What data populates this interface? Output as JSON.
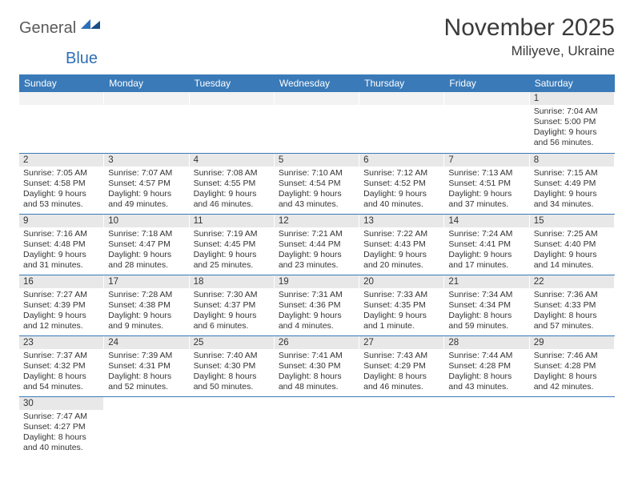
{
  "logo": {
    "general": "General",
    "blue": "Blue"
  },
  "title": "November 2025",
  "location": "Miliyeve, Ukraine",
  "colors": {
    "header_bg": "#3a7ab8",
    "header_text": "#ffffff",
    "daynum_bg": "#e8e8e8",
    "row_border": "#3a7ab8",
    "text": "#333333",
    "logo_gray": "#5a5a5a",
    "logo_blue": "#2d6fb6"
  },
  "day_headers": [
    "Sunday",
    "Monday",
    "Tuesday",
    "Wednesday",
    "Thursday",
    "Friday",
    "Saturday"
  ],
  "weeks": [
    [
      null,
      null,
      null,
      null,
      null,
      null,
      {
        "n": "1",
        "sr": "7:04 AM",
        "ss": "5:00 PM",
        "dl": "9 hours and 56 minutes."
      }
    ],
    [
      {
        "n": "2",
        "sr": "7:05 AM",
        "ss": "4:58 PM",
        "dl": "9 hours and 53 minutes."
      },
      {
        "n": "3",
        "sr": "7:07 AM",
        "ss": "4:57 PM",
        "dl": "9 hours and 49 minutes."
      },
      {
        "n": "4",
        "sr": "7:08 AM",
        "ss": "4:55 PM",
        "dl": "9 hours and 46 minutes."
      },
      {
        "n": "5",
        "sr": "7:10 AM",
        "ss": "4:54 PM",
        "dl": "9 hours and 43 minutes."
      },
      {
        "n": "6",
        "sr": "7:12 AM",
        "ss": "4:52 PM",
        "dl": "9 hours and 40 minutes."
      },
      {
        "n": "7",
        "sr": "7:13 AM",
        "ss": "4:51 PM",
        "dl": "9 hours and 37 minutes."
      },
      {
        "n": "8",
        "sr": "7:15 AM",
        "ss": "4:49 PM",
        "dl": "9 hours and 34 minutes."
      }
    ],
    [
      {
        "n": "9",
        "sr": "7:16 AM",
        "ss": "4:48 PM",
        "dl": "9 hours and 31 minutes."
      },
      {
        "n": "10",
        "sr": "7:18 AM",
        "ss": "4:47 PM",
        "dl": "9 hours and 28 minutes."
      },
      {
        "n": "11",
        "sr": "7:19 AM",
        "ss": "4:45 PM",
        "dl": "9 hours and 25 minutes."
      },
      {
        "n": "12",
        "sr": "7:21 AM",
        "ss": "4:44 PM",
        "dl": "9 hours and 23 minutes."
      },
      {
        "n": "13",
        "sr": "7:22 AM",
        "ss": "4:43 PM",
        "dl": "9 hours and 20 minutes."
      },
      {
        "n": "14",
        "sr": "7:24 AM",
        "ss": "4:41 PM",
        "dl": "9 hours and 17 minutes."
      },
      {
        "n": "15",
        "sr": "7:25 AM",
        "ss": "4:40 PM",
        "dl": "9 hours and 14 minutes."
      }
    ],
    [
      {
        "n": "16",
        "sr": "7:27 AM",
        "ss": "4:39 PM",
        "dl": "9 hours and 12 minutes."
      },
      {
        "n": "17",
        "sr": "7:28 AM",
        "ss": "4:38 PM",
        "dl": "9 hours and 9 minutes."
      },
      {
        "n": "18",
        "sr": "7:30 AM",
        "ss": "4:37 PM",
        "dl": "9 hours and 6 minutes."
      },
      {
        "n": "19",
        "sr": "7:31 AM",
        "ss": "4:36 PM",
        "dl": "9 hours and 4 minutes."
      },
      {
        "n": "20",
        "sr": "7:33 AM",
        "ss": "4:35 PM",
        "dl": "9 hours and 1 minute."
      },
      {
        "n": "21",
        "sr": "7:34 AM",
        "ss": "4:34 PM",
        "dl": "8 hours and 59 minutes."
      },
      {
        "n": "22",
        "sr": "7:36 AM",
        "ss": "4:33 PM",
        "dl": "8 hours and 57 minutes."
      }
    ],
    [
      {
        "n": "23",
        "sr": "7:37 AM",
        "ss": "4:32 PM",
        "dl": "8 hours and 54 minutes."
      },
      {
        "n": "24",
        "sr": "7:39 AM",
        "ss": "4:31 PM",
        "dl": "8 hours and 52 minutes."
      },
      {
        "n": "25",
        "sr": "7:40 AM",
        "ss": "4:30 PM",
        "dl": "8 hours and 50 minutes."
      },
      {
        "n": "26",
        "sr": "7:41 AM",
        "ss": "4:30 PM",
        "dl": "8 hours and 48 minutes."
      },
      {
        "n": "27",
        "sr": "7:43 AM",
        "ss": "4:29 PM",
        "dl": "8 hours and 46 minutes."
      },
      {
        "n": "28",
        "sr": "7:44 AM",
        "ss": "4:28 PM",
        "dl": "8 hours and 43 minutes."
      },
      {
        "n": "29",
        "sr": "7:46 AM",
        "ss": "4:28 PM",
        "dl": "8 hours and 42 minutes."
      }
    ],
    [
      {
        "n": "30",
        "sr": "7:47 AM",
        "ss": "4:27 PM",
        "dl": "8 hours and 40 minutes."
      },
      null,
      null,
      null,
      null,
      null,
      null
    ]
  ],
  "labels": {
    "sunrise": "Sunrise:",
    "sunset": "Sunset:",
    "daylight": "Daylight:"
  }
}
